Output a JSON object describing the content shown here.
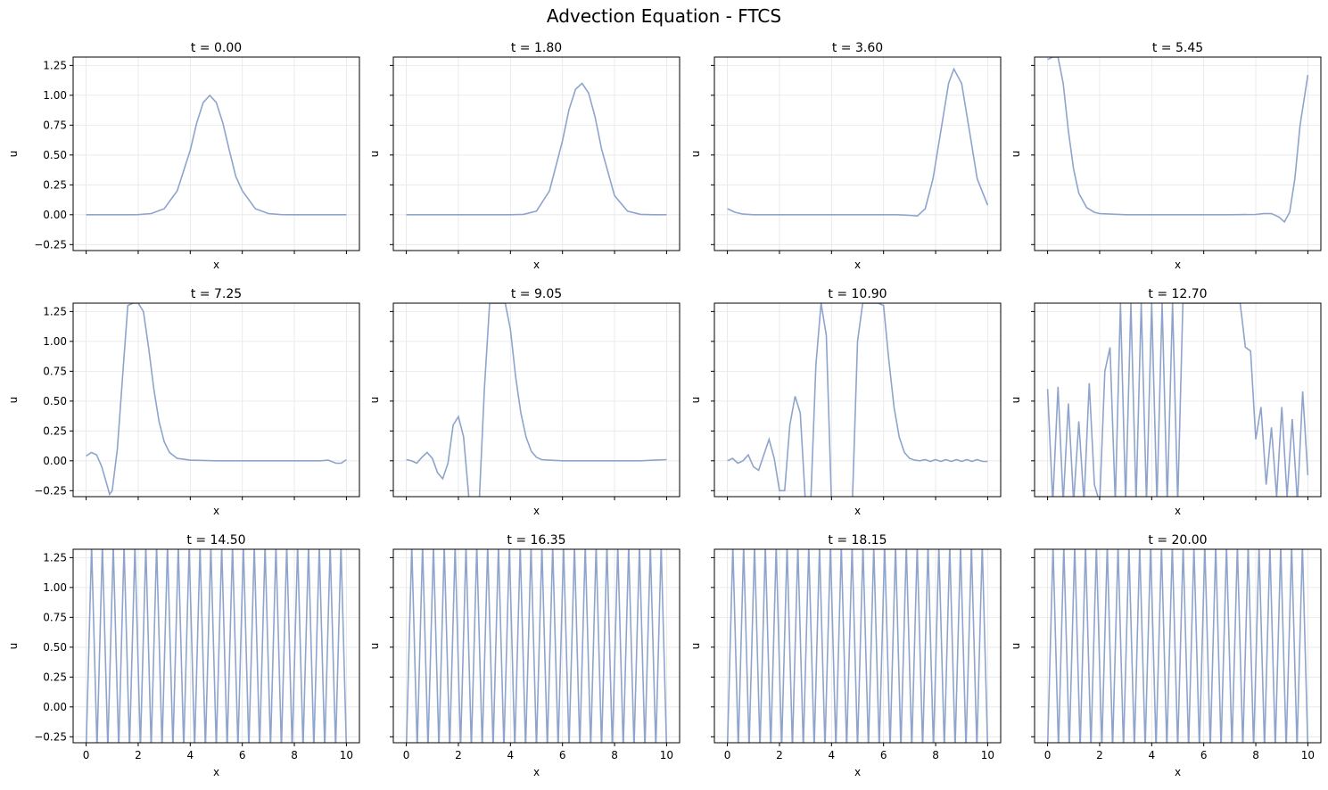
{
  "figure": {
    "title": "Advection Equation - FTCS"
  },
  "style": {
    "line_color": "#8ea4cc",
    "grid_color": "#e6e6e6",
    "axis_color": "#000000"
  },
  "chart_data": [
    {
      "type": "line",
      "title": "t = 0.00",
      "xlabel": "x",
      "ylabel": "u",
      "xlim": [
        -0.5,
        10.5
      ],
      "ylim": [
        -0.3,
        1.32
      ],
      "grid": true,
      "x": [
        0,
        0.5,
        1,
        1.5,
        2,
        2.5,
        3,
        3.5,
        4,
        4.25,
        4.5,
        4.75,
        5,
        5.25,
        5.5,
        5.75,
        6,
        6.5,
        7,
        7.5,
        8,
        8.5,
        9,
        9.5,
        10
      ],
      "y": [
        0,
        0,
        0,
        0,
        0.001,
        0.01,
        0.05,
        0.2,
        0.54,
        0.77,
        0.94,
        1.0,
        0.94,
        0.77,
        0.54,
        0.32,
        0.2,
        0.05,
        0.01,
        0.001,
        0,
        0,
        0,
        0,
        0
      ]
    },
    {
      "type": "line",
      "title": "t = 1.80",
      "xlabel": "x",
      "ylabel": "u",
      "xlim": [
        -0.5,
        10.5
      ],
      "ylim": [
        -0.3,
        1.32
      ],
      "grid": true,
      "x": [
        0,
        1,
        2,
        3,
        4,
        4.5,
        5,
        5.5,
        6,
        6.25,
        6.5,
        6.75,
        7,
        7.25,
        7.5,
        8,
        8.5,
        9,
        9.5,
        10
      ],
      "y": [
        0,
        0,
        0,
        0,
        0,
        0.003,
        0.03,
        0.2,
        0.62,
        0.88,
        1.05,
        1.1,
        1.02,
        0.82,
        0.55,
        0.16,
        0.03,
        0.003,
        0,
        0
      ]
    },
    {
      "type": "line",
      "title": "t = 3.60",
      "xlabel": "x",
      "ylabel": "u",
      "xlim": [
        -0.5,
        10.5
      ],
      "ylim": [
        -0.3,
        1.32
      ],
      "grid": true,
      "x": [
        0,
        0.3,
        0.6,
        1,
        2,
        3,
        4,
        5,
        6,
        6.5,
        7,
        7.3,
        7.6,
        7.9,
        8.2,
        8.5,
        8.7,
        9,
        9.3,
        9.6,
        10
      ],
      "y": [
        0.05,
        0.02,
        0.005,
        0,
        0,
        0,
        0,
        0,
        0,
        0,
        -0.005,
        -0.01,
        0.05,
        0.3,
        0.7,
        1.1,
        1.22,
        1.1,
        0.7,
        0.3,
        0.08
      ]
    },
    {
      "type": "line",
      "title": "t = 5.45",
      "xlabel": "x",
      "ylabel": "u",
      "xlim": [
        -0.5,
        10.5
      ],
      "ylim": [
        -0.3,
        1.32
      ],
      "grid": true,
      "x": [
        0,
        0.2,
        0.4,
        0.6,
        0.8,
        1,
        1.2,
        1.5,
        1.8,
        2,
        3,
        5,
        7,
        8,
        8.3,
        8.6,
        8.9,
        9.1,
        9.3,
        9.5,
        9.7,
        10
      ],
      "y": [
        1.3,
        1.32,
        1.32,
        1.1,
        0.7,
        0.38,
        0.18,
        0.06,
        0.02,
        0.01,
        0,
        0,
        0,
        0.002,
        0.01,
        0.01,
        -0.02,
        -0.06,
        0.02,
        0.3,
        0.75,
        1.17
      ]
    },
    {
      "type": "line",
      "title": "t = 7.25",
      "xlabel": "x",
      "ylabel": "u",
      "xlim": [
        -0.5,
        10.5
      ],
      "ylim": [
        -0.3,
        1.32
      ],
      "grid": true,
      "x": [
        0,
        0.2,
        0.4,
        0.6,
        0.8,
        0.9,
        1,
        1.2,
        1.4,
        1.6,
        1.8,
        2,
        2.2,
        2.4,
        2.6,
        2.8,
        3,
        3.2,
        3.5,
        4,
        5,
        6,
        7,
        8,
        8.5,
        9,
        9.3,
        9.6,
        9.8,
        10
      ],
      "y": [
        0.04,
        0.07,
        0.05,
        -0.05,
        -0.2,
        -0.28,
        -0.25,
        0.1,
        0.7,
        1.3,
        1.32,
        1.32,
        1.25,
        0.95,
        0.6,
        0.33,
        0.16,
        0.07,
        0.02,
        0.005,
        0,
        0,
        0,
        0,
        0,
        0,
        0.005,
        -0.02,
        -0.02,
        0.01
      ]
    },
    {
      "type": "line",
      "title": "t = 9.05",
      "xlabel": "x",
      "ylabel": "u",
      "xlim": [
        -0.5,
        10.5
      ],
      "ylim": [
        -0.3,
        1.32
      ],
      "grid": true,
      "x": [
        0,
        0.2,
        0.4,
        0.6,
        0.8,
        1,
        1.2,
        1.4,
        1.6,
        1.8,
        2,
        2.2,
        2.4,
        2.6,
        2.8,
        3,
        3.2,
        3.4,
        3.6,
        3.8,
        4,
        4.2,
        4.4,
        4.6,
        4.8,
        5,
        5.2,
        5.5,
        6,
        7,
        8,
        9,
        9.5,
        10
      ],
      "y": [
        0.01,
        0,
        -0.02,
        0.03,
        0.07,
        0.02,
        -0.1,
        -0.15,
        -0.02,
        0.3,
        0.37,
        0.2,
        -0.3,
        -0.35,
        -0.35,
        0.6,
        1.32,
        1.32,
        1.32,
        1.32,
        1.1,
        0.7,
        0.4,
        0.2,
        0.08,
        0.03,
        0.01,
        0.005,
        0,
        0,
        0,
        0,
        0.005,
        0.01
      ]
    },
    {
      "type": "line",
      "title": "t = 10.90",
      "xlabel": "x",
      "ylabel": "u",
      "xlim": [
        -0.5,
        10.5
      ],
      "ylim": [
        -0.3,
        1.32
      ],
      "grid": true,
      "x": [
        0,
        0.2,
        0.4,
        0.6,
        0.8,
        1,
        1.2,
        1.4,
        1.6,
        1.8,
        2,
        2.2,
        2.4,
        2.6,
        2.8,
        3,
        3.2,
        3.4,
        3.6,
        3.8,
        4,
        4.2,
        4.4,
        4.6,
        4.8,
        5,
        5.2,
        5.4,
        5.6,
        5.8,
        6,
        6.2,
        6.4,
        6.6,
        6.8,
        7,
        7.2,
        7.4,
        7.6,
        7.8,
        8,
        8.2,
        8.4,
        8.6,
        8.8,
        9,
        9.2,
        9.4,
        9.6,
        9.8,
        10
      ],
      "y": [
        0,
        0.02,
        -0.02,
        0,
        0.05,
        -0.05,
        -0.08,
        0.05,
        0.18,
        0.02,
        -0.25,
        -0.25,
        0.3,
        0.54,
        0.4,
        -0.35,
        -0.35,
        0.8,
        1.32,
        1.05,
        -0.35,
        -0.35,
        -0.35,
        -0.35,
        -0.35,
        1.0,
        1.32,
        1.32,
        1.32,
        1.32,
        1.3,
        0.85,
        0.45,
        0.2,
        0.07,
        0.02,
        0.005,
        0,
        0.01,
        -0.005,
        0.01,
        -0.005,
        0.01,
        -0.005,
        0.01,
        -0.005,
        0.01,
        -0.005,
        0.01,
        -0.005,
        -0.005
      ]
    },
    {
      "type": "line",
      "title": "t = 12.70",
      "xlabel": "x",
      "ylabel": "u",
      "xlim": [
        -0.5,
        10.5
      ],
      "ylim": [
        -0.3,
        1.32
      ],
      "grid": true,
      "x": [
        0,
        0.2,
        0.4,
        0.6,
        0.8,
        1,
        1.2,
        1.4,
        1.6,
        1.8,
        2,
        2.2,
        2.4,
        2.6,
        2.8,
        3,
        3.2,
        3.4,
        3.6,
        3.8,
        4,
        4.2,
        4.4,
        4.6,
        4.8,
        5,
        5.2,
        5.4,
        5.6,
        5.8,
        6,
        6.2,
        6.4,
        6.6,
        6.8,
        7,
        7.2,
        7.4,
        7.6,
        7.8,
        8,
        8.2,
        8.4,
        8.6,
        8.8,
        9,
        9.2,
        9.4,
        9.6,
        9.8,
        10
      ],
      "y": [
        0.6,
        -0.35,
        0.62,
        -0.35,
        0.48,
        -0.35,
        0.33,
        -0.35,
        0.65,
        -0.2,
        -0.35,
        0.75,
        0.95,
        -0.35,
        1.32,
        -0.35,
        1.32,
        -0.35,
        1.32,
        -0.35,
        1.32,
        -0.35,
        1.32,
        -0.35,
        1.32,
        -0.35,
        1.32,
        1.32,
        1.32,
        1.32,
        1.32,
        1.32,
        1.32,
        1.32,
        1.32,
        1.32,
        1.32,
        1.32,
        0.95,
        0.92,
        0.18,
        0.45,
        -0.2,
        0.28,
        -0.3,
        0.45,
        -0.3,
        0.35,
        -0.35,
        0.58,
        -0.12
      ]
    },
    {
      "type": "line",
      "title": "t = 14.50",
      "xlabel": "x",
      "ylabel": "u",
      "xlim": [
        -0.5,
        10.5
      ],
      "ylim": [
        -0.3,
        1.32
      ],
      "grid": true,
      "x_ticks": [
        0,
        2,
        4,
        6,
        8,
        10
      ],
      "oscillation": "grid-scale",
      "x_min": 0,
      "x_max": 10,
      "y_range": [
        -0.35,
        1.35
      ]
    },
    {
      "type": "line",
      "title": "t = 16.35",
      "xlabel": "x",
      "ylabel": "u",
      "xlim": [
        -0.5,
        10.5
      ],
      "ylim": [
        -0.3,
        1.32
      ],
      "grid": true,
      "x_ticks": [
        0,
        2,
        4,
        6,
        8,
        10
      ],
      "oscillation": "grid-scale",
      "x_min": 0,
      "x_max": 10,
      "y_range": [
        -0.35,
        1.35
      ]
    },
    {
      "type": "line",
      "title": "t = 18.15",
      "xlabel": "x",
      "ylabel": "u",
      "xlim": [
        -0.5,
        10.5
      ],
      "ylim": [
        -0.3,
        1.32
      ],
      "grid": true,
      "x_ticks": [
        0,
        2,
        4,
        6,
        8,
        10
      ],
      "oscillation": "grid-scale",
      "x_min": 0,
      "x_max": 10,
      "y_range": [
        -0.35,
        1.35
      ]
    },
    {
      "type": "line",
      "title": "t = 20.00",
      "xlabel": "x",
      "ylabel": "u",
      "xlim": [
        -0.5,
        10.5
      ],
      "ylim": [
        -0.3,
        1.32
      ],
      "grid": true,
      "x_ticks": [
        0,
        2,
        4,
        6,
        8,
        10
      ],
      "oscillation": "grid-scale",
      "x_min": 0,
      "x_max": 10,
      "y_range": [
        -0.35,
        1.35
      ]
    }
  ],
  "axes": {
    "y_ticks": [
      -0.25,
      0,
      0.25,
      0.5,
      0.75,
      1,
      1.25
    ],
    "y_tick_labels": [
      "−0.25",
      "0.00",
      "0.25",
      "0.50",
      "0.75",
      "1.00",
      "1.25"
    ],
    "x_ticks": [
      0,
      2,
      4,
      6,
      8,
      10
    ],
    "x_tick_labels": [
      "0",
      "2",
      "4",
      "6",
      "8",
      "10"
    ]
  }
}
